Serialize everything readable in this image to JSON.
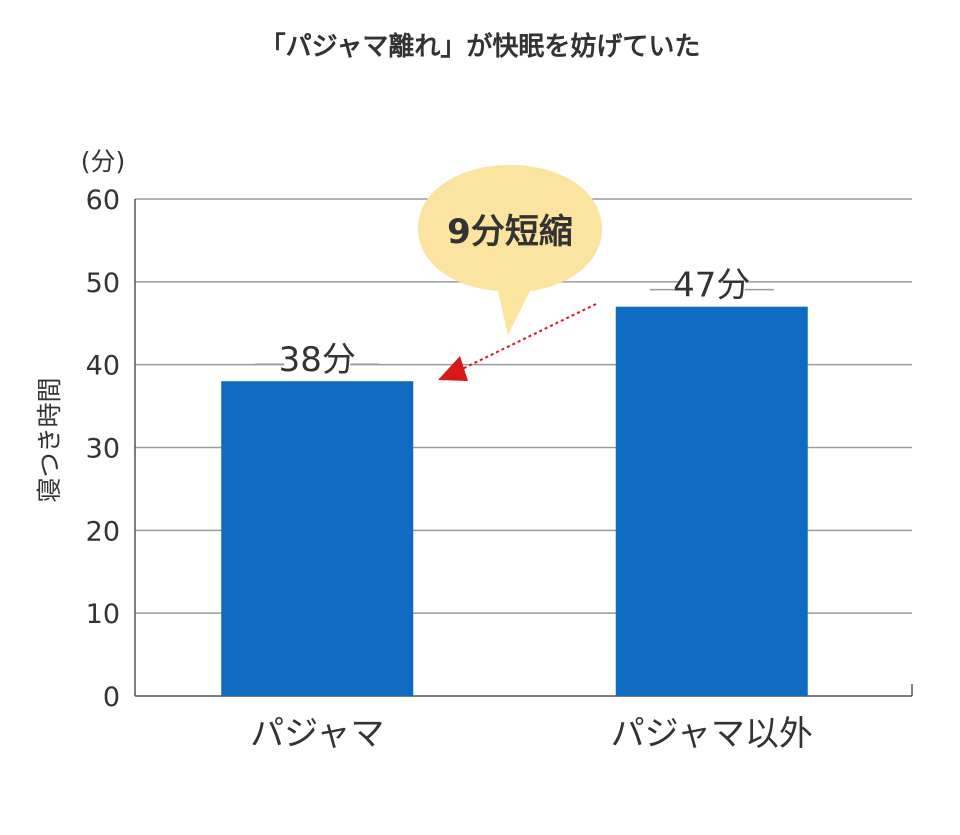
{
  "chart_data": {
    "type": "bar",
    "title": "「パジャマ離れ」が快眠を妨げていた",
    "ylabel": "寝つき時間",
    "yunit": "(分)",
    "ylim": [
      0,
      60
    ],
    "yticks": [
      "0",
      "10",
      "20",
      "30",
      "40",
      "50",
      "60"
    ],
    "categories": [
      "パジャマ",
      "パジャマ以外"
    ],
    "values": [
      38,
      47
    ],
    "data_labels": [
      "38分",
      "47分"
    ],
    "grid": true,
    "bar_color": "#0e6bc0",
    "annotation": {
      "text": "9分短縮",
      "bubble_color": "#fbe3a0",
      "arrow_color": "#d7191c"
    }
  }
}
